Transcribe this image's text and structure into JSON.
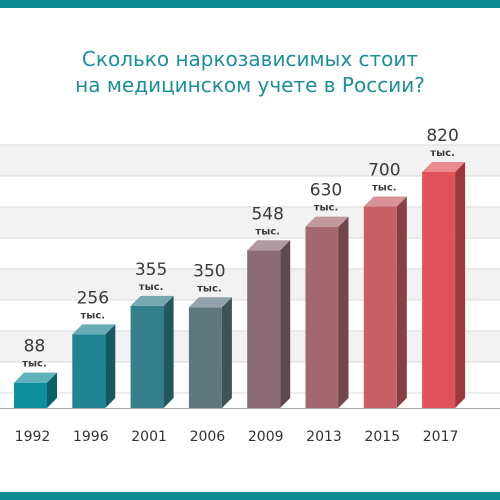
{
  "title_lines": [
    "Сколько наркозависимых стоит",
    "на медицинском учете в России?"
  ],
  "colors": {
    "band": "#0e8a93",
    "title": "#1b9098",
    "grid": "#d9d9d9",
    "grid_band": "#f2f2f2",
    "value_text": "#3a3a3a",
    "unit_text": "#3a3a3a",
    "axis_text": "#333333",
    "baseline": "#a6a6a6"
  },
  "chart_data": {
    "type": "bar",
    "title": "Сколько наркозависимых стоит на медицинском учете в России?",
    "categories": [
      "1992",
      "1996",
      "2001",
      "2006",
      "2009",
      "2013",
      "2015",
      "2017"
    ],
    "values": [
      88,
      256,
      355,
      350,
      548,
      630,
      700,
      820
    ],
    "value_labels": [
      "88",
      "256",
      "355",
      "350",
      "548",
      "630",
      "700",
      "820"
    ],
    "unit_label": "тыс.",
    "bar_colors": [
      "#0f8f9b",
      "#1f8391",
      "#34808a",
      "#5f7880",
      "#8a6a75",
      "#a46870",
      "#c65f66",
      "#e2525a"
    ],
    "ylim": [
      0,
      820
    ],
    "grid": true,
    "legend": "none",
    "xlabel": "",
    "ylabel": ""
  }
}
